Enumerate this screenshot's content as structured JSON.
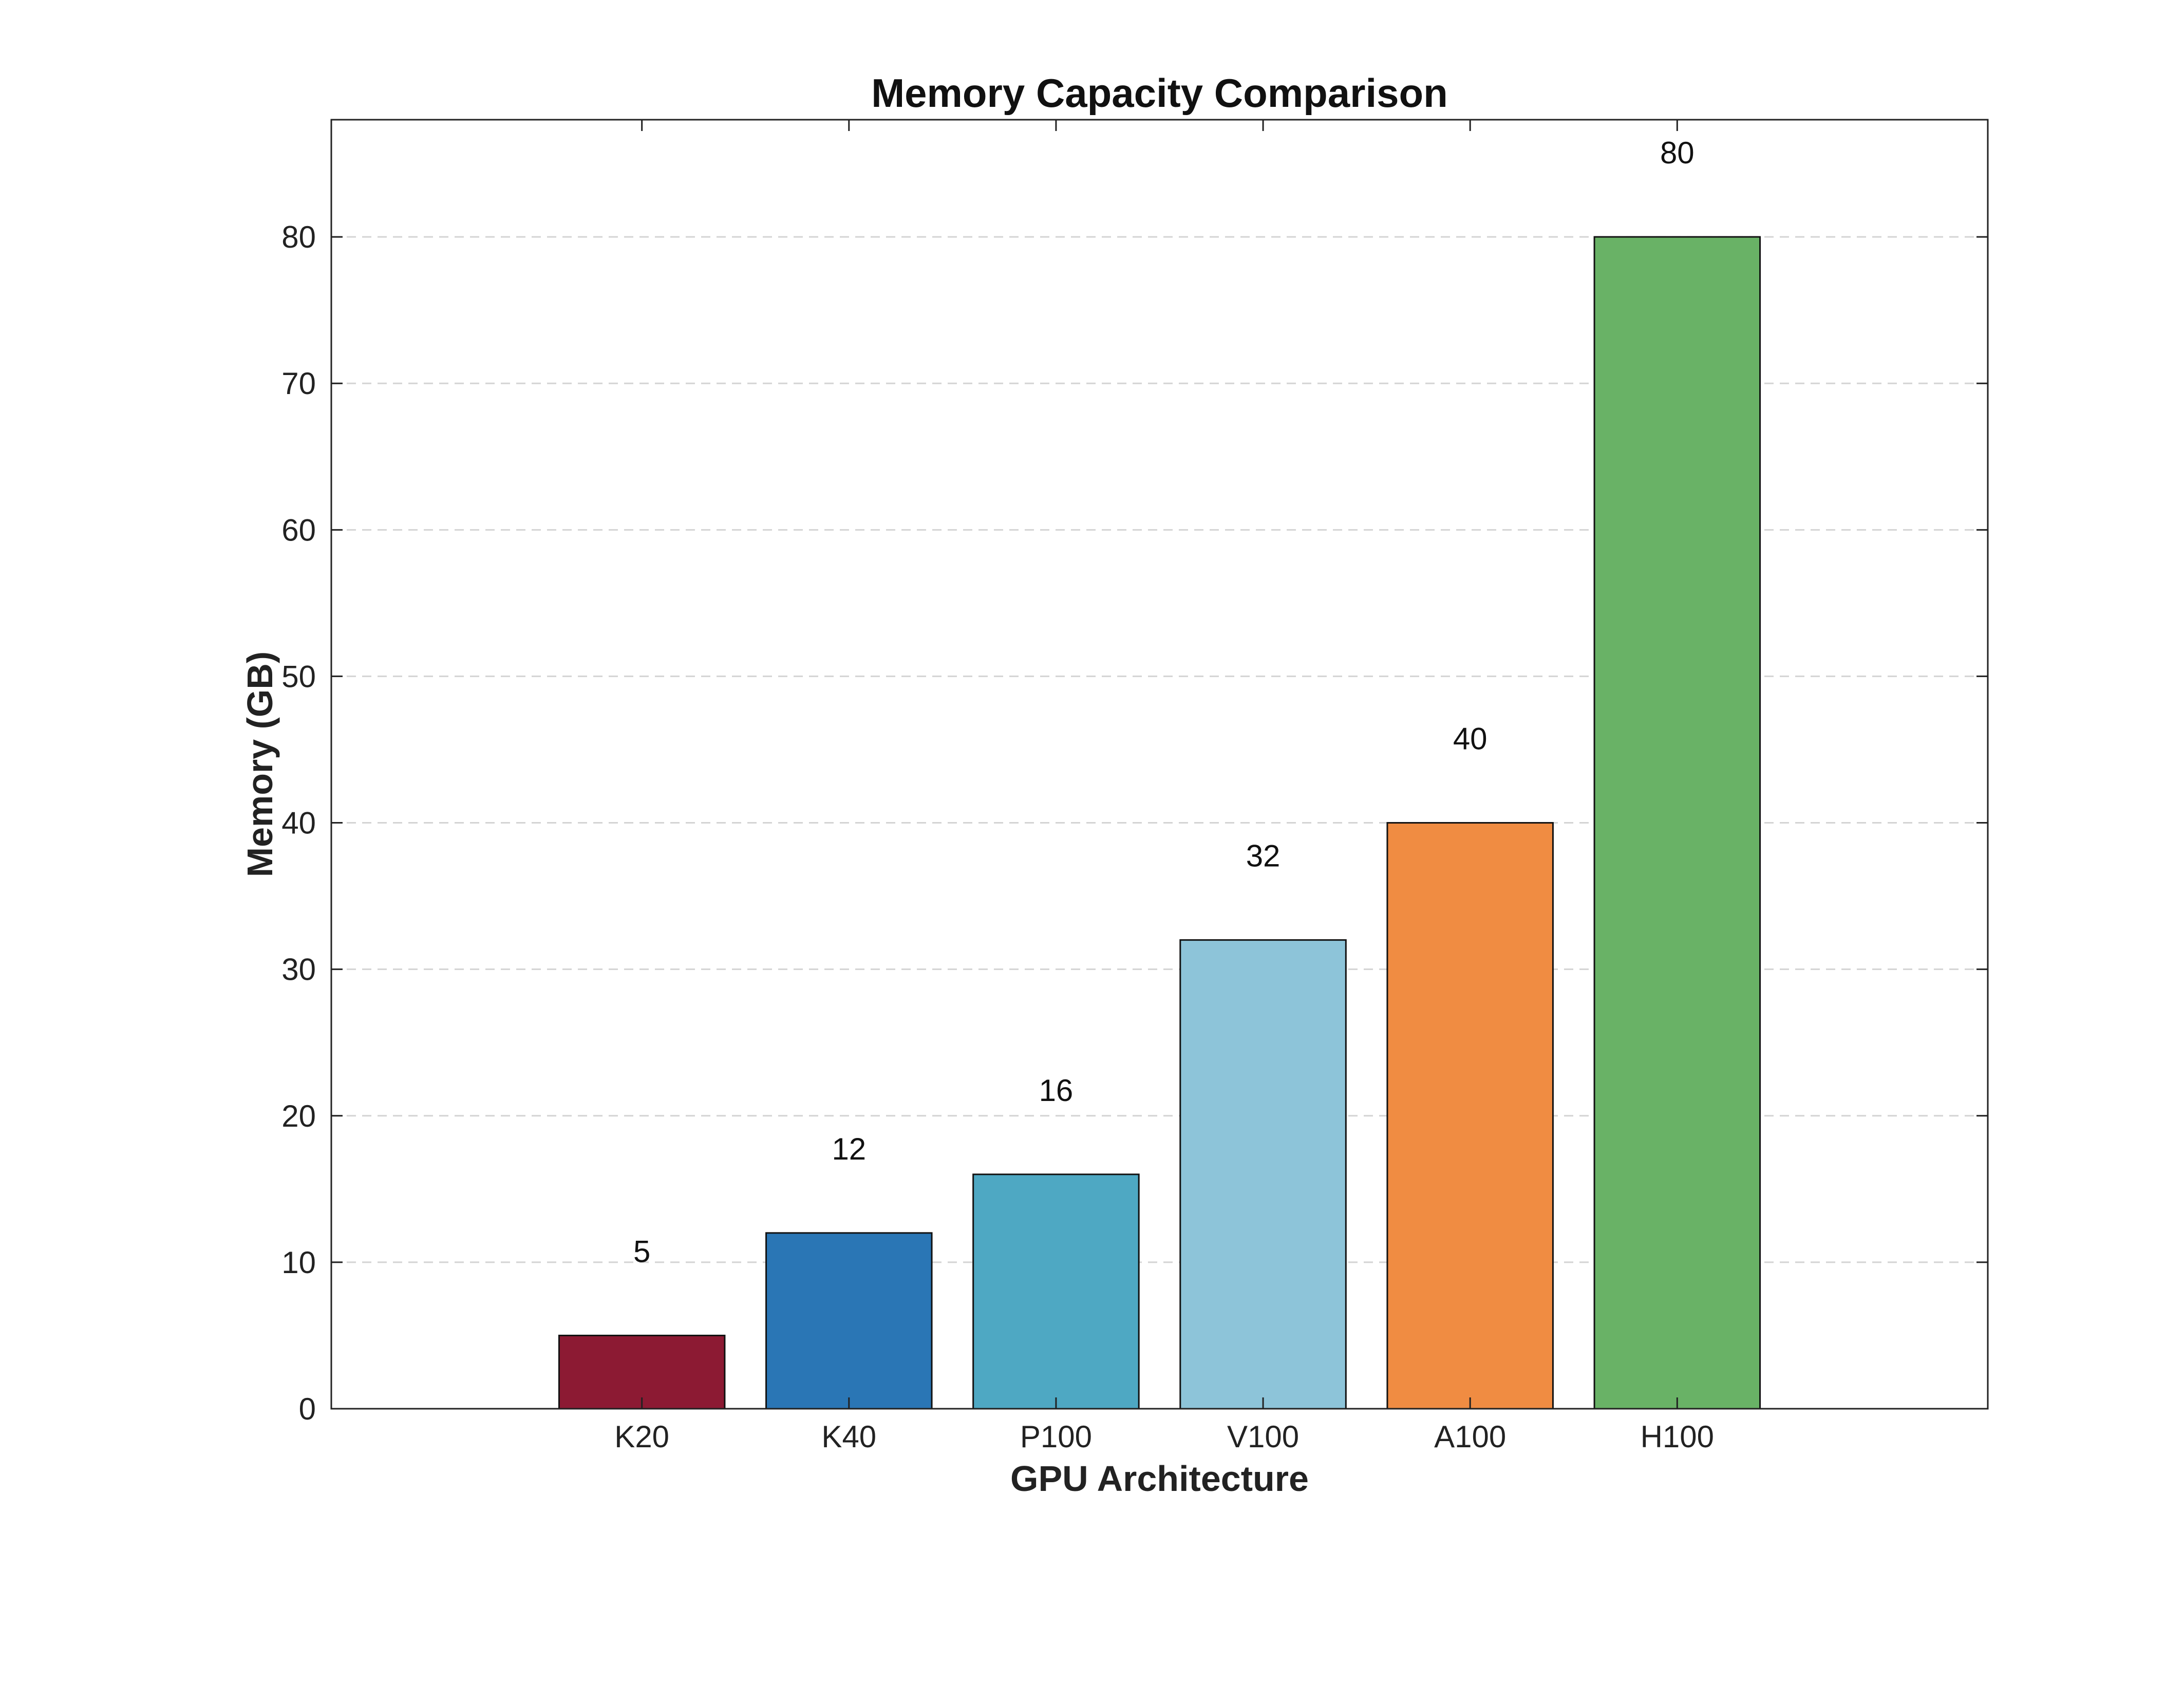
{
  "chart_data": {
    "type": "bar",
    "title": "Memory Capacity Comparison",
    "xlabel": "GPU Architecture",
    "ylabel": "Memory (GB)",
    "categories": [
      "K20",
      "K40",
      "P100",
      "V100",
      "A100",
      "H100"
    ],
    "values": [
      5,
      12,
      16,
      32,
      40,
      80
    ],
    "data_labels": [
      "5",
      "12",
      "16",
      "32",
      "40",
      "80"
    ],
    "colors": [
      "#8c1a33",
      "#2a76b5",
      "#4ea8c3",
      "#8dc4d9",
      "#f08c42",
      "#69b266"
    ],
    "yticks": [
      0,
      10,
      20,
      30,
      40,
      50,
      60,
      70,
      80
    ],
    "ylim": [
      0,
      88
    ],
    "grid": "horizontal-dashed",
    "legend": "none"
  }
}
